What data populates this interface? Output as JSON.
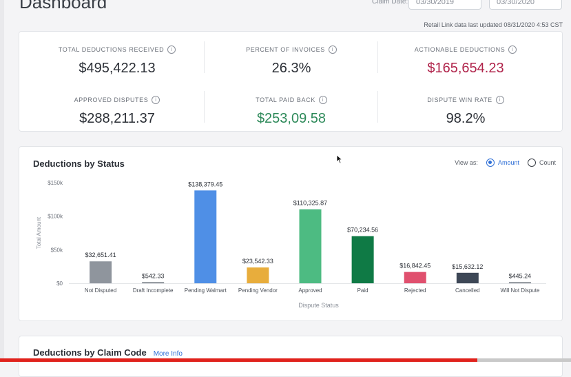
{
  "header": {
    "title": "Dashboard",
    "claim_date_label": "Claim Date:",
    "date_from": "03/30/2019",
    "date_to": "03/30/2020",
    "updated_text": "Retail Link data last updated 08/31/2020 4:53 CST"
  },
  "kpis": [
    {
      "label": "TOTAL DEDUCTIONS RECEIVED",
      "value": "$495,422.13",
      "color": "#2b2f36"
    },
    {
      "label": "PERCENT OF INVOICES",
      "value": "26.3%",
      "color": "#2b2f36"
    },
    {
      "label": "ACTIONABLE DEDUCTIONS",
      "value": "$165,654.23",
      "color": "#b0244b"
    },
    {
      "label": "APPROVED DISPUTES",
      "value": "$288,211.37",
      "color": "#2b2f36"
    },
    {
      "label": "TOTAL PAID BACK",
      "value": "$253,09.58",
      "color": "#2e8a5a"
    },
    {
      "label": "DISPUTE WIN RATE",
      "value": "98.2%",
      "color": "#2b2f36"
    }
  ],
  "status_panel": {
    "title": "Deductions by Status",
    "view_as_label": "View as:",
    "option_amount": "Amount",
    "option_count": "Count",
    "selected": "Amount"
  },
  "claim_code_panel": {
    "title": "Deductions by Claim Code",
    "more_info": "More Info"
  },
  "chart_data": {
    "type": "bar",
    "xlabel": "Dispute Status",
    "ylabel": "Total Amount",
    "ylim": [
      0,
      150000
    ],
    "yticks": [
      {
        "value": 0,
        "label": "$0"
      },
      {
        "value": 50000,
        "label": "$50k"
      },
      {
        "value": 100000,
        "label": "$100k"
      },
      {
        "value": 150000,
        "label": "$150k"
      }
    ],
    "grid": false,
    "categories": [
      "Not Disputed",
      "Draft Incomplete",
      "Pending Walmart",
      "Pending Vendor",
      "Approved",
      "Paid",
      "Rejected",
      "Cancelled",
      "Will Not Dispute"
    ],
    "values": [
      32651.41,
      542.33,
      138379.45,
      23542.33,
      110325.87,
      70234.56,
      16842.45,
      15632.12,
      445.24
    ],
    "value_labels": [
      "$32,651.41",
      "$542.33",
      "$138,379.45",
      "$23,542.33",
      "$110,325.87",
      "$70,234.56",
      "$16,842.45",
      "$15,632.12",
      "$445.24"
    ],
    "colors": [
      "#8f959d",
      "#6a7079",
      "#4f8fe6",
      "#e8ad3c",
      "#4dbb82",
      "#0f7a45",
      "#e0506e",
      "#3d4756",
      "#6a7079"
    ]
  }
}
